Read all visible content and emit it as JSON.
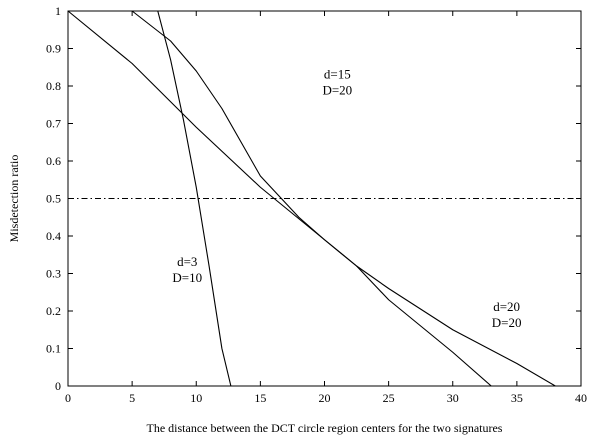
{
  "chart_data": {
    "type": "line",
    "xlabel": "The distance between the DCT circle region centers for the two signatures",
    "ylabel": "Misdetection ratio",
    "xlim": [
      0,
      40
    ],
    "ylim": [
      0,
      1
    ],
    "xticks": [
      0,
      5,
      10,
      15,
      20,
      25,
      30,
      35,
      40
    ],
    "xtick_labels": [
      "0",
      "5",
      "10",
      "15",
      "20",
      "25",
      "30",
      "35",
      "40"
    ],
    "yticks": [
      0,
      0.1,
      0.2,
      0.3,
      0.4,
      0.5,
      0.6,
      0.7,
      0.8,
      0.9,
      1
    ],
    "ytick_labels": [
      "0",
      "0.1",
      "0.2",
      "0.3",
      "0.4",
      "0.5",
      "0.6",
      "0.7",
      "0.8",
      "0.9",
      "1"
    ],
    "grid": false,
    "box": true,
    "series": [
      {
        "x": [
          0,
          7,
          8,
          9,
          10,
          11,
          12,
          12.7
        ],
        "y": [
          1,
          1,
          0.87,
          0.71,
          0.53,
          0.32,
          0.1,
          0
        ]
      },
      {
        "x": [
          0,
          5,
          8,
          10,
          12,
          15,
          18,
          20,
          22.5,
          25,
          30,
          33
        ],
        "y": [
          1,
          1,
          0.92,
          0.84,
          0.74,
          0.56,
          0.45,
          0.39,
          0.32,
          0.23,
          0.09,
          0
        ]
      },
      {
        "x": [
          0,
          5,
          10,
          15,
          20,
          22.5,
          25,
          30,
          35,
          38
        ],
        "y": [
          1,
          0.86,
          0.69,
          0.53,
          0.39,
          0.32,
          0.26,
          0.15,
          0.06,
          0
        ]
      }
    ],
    "reference_lines": [
      {
        "axis": "y",
        "value": 0.5,
        "style": "dash-dot"
      }
    ],
    "annotations": [
      {
        "lines": [
          "d=15",
          "D=20"
        ],
        "x": 21,
        "y": 0.82
      },
      {
        "lines": [
          "d=3",
          "D=10"
        ],
        "x": 9.3,
        "y": 0.32
      },
      {
        "lines": [
          "d=20",
          "D=20"
        ],
        "x": 34.2,
        "y": 0.2
      }
    ]
  }
}
